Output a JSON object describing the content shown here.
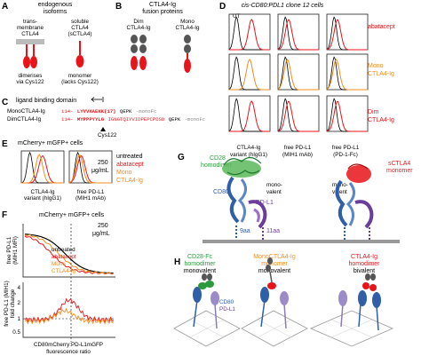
{
  "panels": {
    "A": {
      "label": "A",
      "title_1": "endogenous",
      "title_2": "isoforms",
      "left_1": "trans-",
      "left_2": "membrane",
      "left_3": "CTLA4",
      "right_1": "soluble",
      "right_2": "CTLA4",
      "right_3": "(sCTLA4)",
      "left_bottom_1": "dimerises",
      "left_bottom_2": "via Cys122",
      "right_bottom_1": "monomer",
      "right_bottom_2": "(lacks Cys122)"
    },
    "B": {
      "label": "B",
      "title_1": "CTLA4-Ig",
      "title_2": "fusion proteins",
      "left_1": "Dim",
      "left_2": "CTLA4-Ig",
      "right_1": "Mono",
      "right_2": "CTLA4-Ig"
    },
    "C": {
      "label": "C",
      "title": "ligand binding domain",
      "row1_name": "MonoCTLA4-Ig",
      "row1_pre": "114-",
      "row1_red": "LYVVKAEKK(17)",
      "row1_black": "QEPK",
      "row1_gray": "-monoFc",
      "row2_name": "DimCTLA4-Ig",
      "row2_pre": "114-",
      "row2_red": "MYPPPYYLG",
      "row2_cys": "IGNGTQIYVIDPEPCPDSD",
      "row2_black": "QEPK",
      "row2_gray": "-monoFc",
      "cys_label": "Cys122"
    },
    "D": {
      "label": "D",
      "title": "cis-CD80:PDL1 clone 12 cells",
      "ut": "UT",
      "row_labels": [
        {
          "l1": "abatacept",
          "l2": ""
        },
        {
          "l1": "Mono",
          "l2": "CTLA4-Ig"
        },
        {
          "l1": "Dim",
          "l2": "CTLA4-Ig"
        }
      ],
      "xlabels": [
        {
          "l1": "CTLA4-Ig",
          "l2": "variant (hIgG1)"
        },
        {
          "l1": "free PD-L1",
          "l2": "(MIH1 mAb)"
        },
        {
          "l1": "free PD-L1",
          "l2": "(PD-1-Fc)"
        }
      ]
    },
    "E": {
      "label": "E",
      "title": "mCherry+ mGFP+ cells",
      "legend": [
        "untreated",
        "abatacept",
        "Mono",
        "CTLA4-Ig"
      ],
      "conc_1": "250",
      "conc_2": "μg/mL",
      "xlabel1_1": "CTLA4-Ig",
      "xlabel1_2": "variant (hIgG1)",
      "xlabel2_1": "free PD-L1",
      "xlabel2_2": "(MIH1 mAb)"
    },
    "F": {
      "label": "F",
      "title": "mCherry+ mGFP+ cells",
      "conc_1": "250",
      "conc_2": "μg/mL",
      "ylabel_top_1": "free PD-L1",
      "ylabel_top_2": "(MIH1 MFI)",
      "ylabel_bot_1": "free PD-L1 (MIH1)",
      "ylabel_bot_2": "fold change",
      "legend": [
        "untreated",
        "abatacept",
        "Mono",
        "CTLA4-Ig"
      ],
      "xlabel_1": "CD80mCherry:PD-L1mGFP",
      "xlabel_2": "fluorescence ratio",
      "yticks_bot": [
        "4",
        "2",
        "1",
        "0.5"
      ]
    },
    "G": {
      "label": "G",
      "cd28": "CD28",
      "homodimer": "homodimer",
      "monovalent_a": "mono-",
      "monovalent_b": "valent",
      "cd80": "CD80",
      "pdl1": "PD-L1",
      "sctla4": "sCTLA4",
      "monomer": "monomer",
      "aa9": "9aa",
      "aa11": "11aa"
    },
    "H": {
      "label": "H",
      "col1": {
        "l1": "CD28-Fc",
        "l2": "homodimer",
        "l3": "monovalent"
      },
      "col2": {
        "l1": "MonoCTLA4-Ig",
        "l2": "monomer",
        "l3": "monovalent"
      },
      "col3": {
        "l1": "CTLA4-Ig",
        "l2": "homodimer",
        "l3": "bivalent"
      },
      "cd80": "CD80",
      "pdl1": "PD-L1"
    }
  },
  "colors": {
    "red": "#e8141a",
    "orange": "#f28c1c",
    "black": "#000000",
    "gray": "#888888",
    "green": "#2a9a3a",
    "blue": "#2f5fa8",
    "purple": "#6a3d9a"
  }
}
